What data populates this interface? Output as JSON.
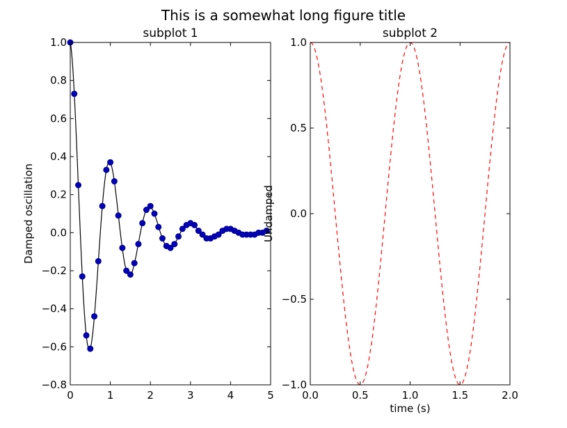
{
  "figure": {
    "suptitle": "This is a somewhat long figure title"
  },
  "chart_data": [
    {
      "type": "line",
      "title": "subplot 1",
      "xlabel": "",
      "ylabel": "Damped oscillation",
      "xlim": [
        0,
        5
      ],
      "ylim": [
        -0.8,
        1.0
      ],
      "xticks": [
        0,
        1,
        2,
        3,
        4,
        5
      ],
      "xtick_labels": [
        "0",
        "1",
        "2",
        "3",
        "4",
        "5"
      ],
      "yticks": [
        -0.8,
        -0.6,
        -0.4,
        -0.2,
        0.0,
        0.2,
        0.4,
        0.6,
        0.8,
        1.0
      ],
      "ytick_labels": [
        "−0.8",
        "−0.6",
        "−0.4",
        "−0.2",
        "0.0",
        "0.2",
        "0.4",
        "0.6",
        "0.8",
        "1.0"
      ],
      "grid": false,
      "colors": {
        "line": "#000000",
        "marker_fill": "#0000bf",
        "marker_edge": "#00007f"
      },
      "series": [
        {
          "style": "line",
          "x_range": [
            0,
            5
          ],
          "function": "cos(2*pi*t)*exp(-t)"
        },
        {
          "style": "markers",
          "x": [
            0,
            0.1,
            0.2,
            0.3,
            0.4,
            0.5,
            0.6,
            0.7,
            0.8,
            0.9,
            1.0,
            1.1,
            1.2,
            1.3,
            1.4,
            1.5,
            1.6,
            1.7,
            1.8,
            1.9,
            2.0,
            2.1,
            2.2,
            2.3,
            2.4,
            2.5,
            2.6,
            2.7,
            2.8,
            2.9,
            3.0,
            3.1,
            3.2,
            3.3,
            3.4,
            3.5,
            3.6,
            3.7,
            3.8,
            3.9,
            4.0,
            4.1,
            4.2,
            4.3,
            4.4,
            4.5,
            4.6,
            4.7,
            4.8,
            4.9
          ],
          "y": [
            1.0,
            0.73,
            0.25,
            -0.23,
            -0.54,
            -0.61,
            -0.44,
            -0.15,
            0.14,
            0.33,
            0.37,
            0.27,
            0.09,
            -0.08,
            -0.2,
            -0.22,
            -0.16,
            -0.06,
            0.05,
            0.12,
            0.14,
            0.1,
            0.03,
            -0.03,
            -0.07,
            -0.08,
            -0.06,
            -0.02,
            0.02,
            0.04,
            0.05,
            0.04,
            0.01,
            -0.01,
            -0.03,
            -0.03,
            -0.02,
            -0.01,
            0.01,
            0.02,
            0.02,
            0.01,
            0.0,
            -0.01,
            -0.01,
            -0.01,
            -0.01,
            0.0,
            0.0,
            0.01
          ]
        }
      ]
    },
    {
      "type": "line",
      "title": "subplot 2",
      "xlabel": "time (s)",
      "ylabel": "Undamped",
      "xlim": [
        0.0,
        2.0
      ],
      "ylim": [
        -1.0,
        1.0
      ],
      "xticks": [
        0.0,
        0.5,
        1.0,
        1.5,
        2.0
      ],
      "xtick_labels": [
        "0.0",
        "0.5",
        "1.0",
        "1.5",
        "2.0"
      ],
      "yticks": [
        -1.0,
        -0.5,
        0.0,
        0.5,
        1.0
      ],
      "ytick_labels": [
        "−1.0",
        "−0.5",
        "0.0",
        "0.5",
        "1.0"
      ],
      "grid": false,
      "colors": {
        "line": "#ff0000"
      },
      "series": [
        {
          "style": "dashed",
          "x_range": [
            0,
            2
          ],
          "function": "cos(2*pi*t)"
        }
      ]
    }
  ]
}
